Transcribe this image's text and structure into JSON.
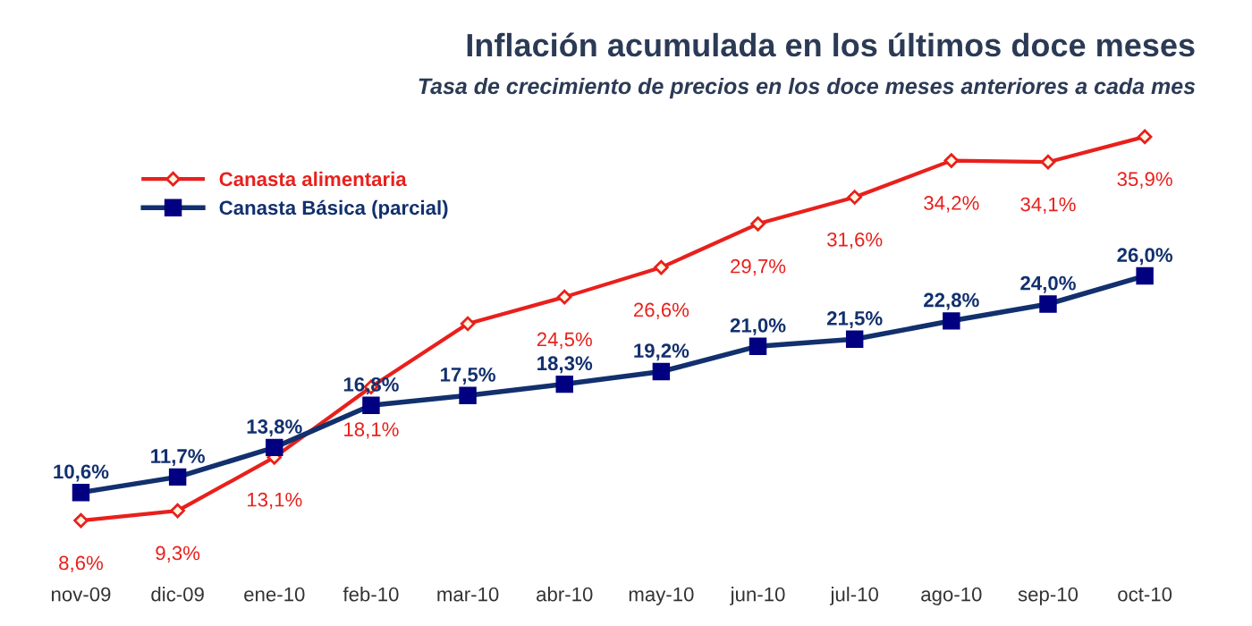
{
  "chart_data": {
    "type": "line",
    "title": "Inflación acumulada en los últimos doce meses",
    "subtitle": "Tasa de crecimiento de precios en los doce meses anteriores a cada mes",
    "categories": [
      "nov-09",
      "dic-09",
      "ene-10",
      "feb-10",
      "mar-10",
      "abr-10",
      "may-10",
      "jun-10",
      "jul-10",
      "ago-10",
      "sep-10",
      "oct-10"
    ],
    "series": [
      {
        "name": "Canasta alimentaria",
        "color": "#e8201c",
        "marker": "diamond",
        "values": [
          8.6,
          9.3,
          13.1,
          18.1,
          22.6,
          24.5,
          26.6,
          29.7,
          31.6,
          34.2,
          34.1,
          35.9
        ],
        "value_labels": [
          "8,6%",
          "9,3%",
          "13,1%",
          "18,1%",
          null,
          "24,5%",
          "26,6%",
          "29,7%",
          "31,6%",
          "34,2%",
          "34,1%",
          "35,9%"
        ]
      },
      {
        "name": "Canasta Básica (parcial)",
        "color": "#12306e",
        "marker": "square",
        "values": [
          10.6,
          11.7,
          13.8,
          16.8,
          17.5,
          18.3,
          19.2,
          21.0,
          21.5,
          22.8,
          24.0,
          26.0
        ],
        "value_labels": [
          "10,6%",
          "11,7%",
          "13,8%",
          "16,8%",
          "17,5%",
          "18,3%",
          "19,2%",
          "21,0%",
          "21,5%",
          "22,8%",
          "24,0%",
          "26,0%"
        ]
      }
    ],
    "tick_labels": "x",
    "grid": false,
    "legend": "top left"
  }
}
